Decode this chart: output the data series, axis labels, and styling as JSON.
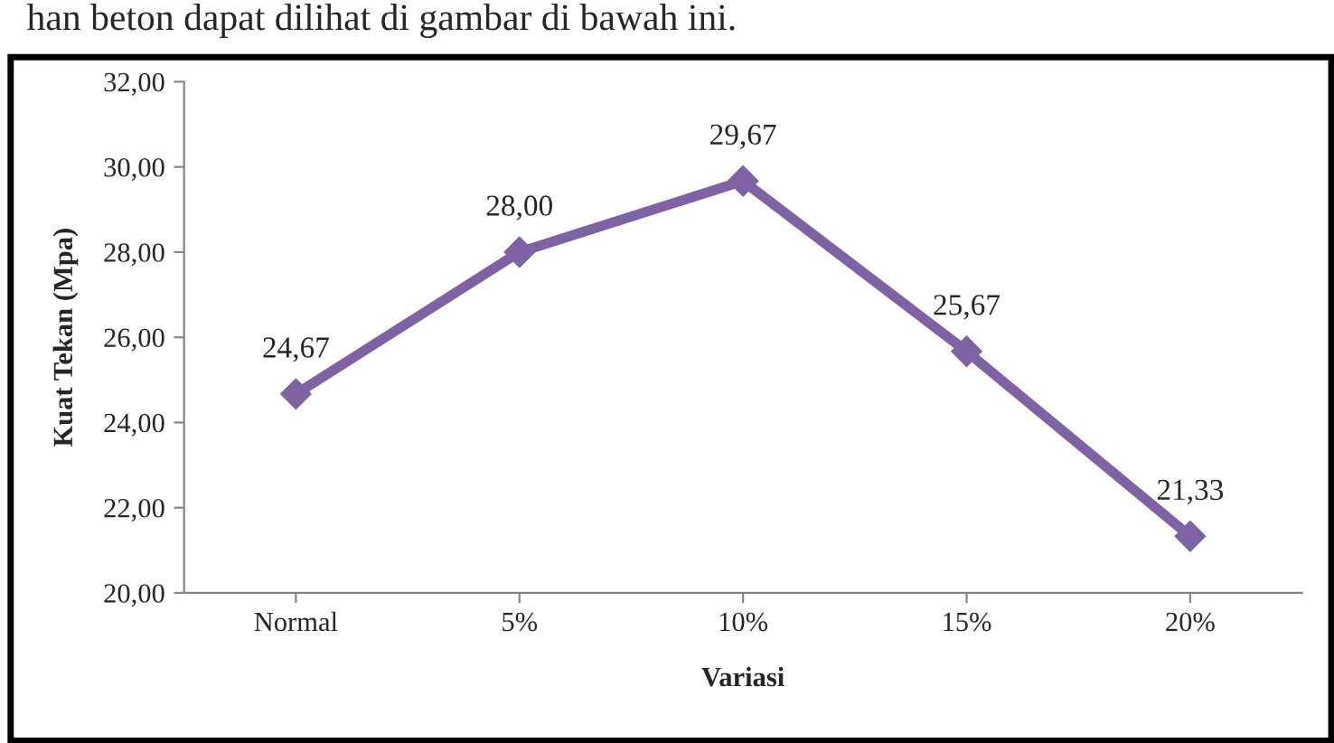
{
  "chart_data": {
    "type": "line",
    "xlabel": "Variasi",
    "ylabel": "Kuat Tekan (Mpa)",
    "annotations": [
      "han beton dapat dilihat di gambar di bawah ini."
    ],
    "categories": [
      "Normal",
      "5%",
      "10%",
      "15%",
      "20%"
    ],
    "series": [
      {
        "color": "#7f62a4",
        "values": [
          24.67,
          28.0,
          29.67,
          25.67,
          21.33
        ],
        "value_labels": [
          "24,67",
          "28,00",
          "29,67",
          "25,67",
          "21,33"
        ]
      }
    ],
    "ylim": [
      20,
      32
    ],
    "yticks": [
      {
        "value": 20,
        "label": "20,00"
      },
      {
        "value": 22,
        "label": "22,00"
      },
      {
        "value": 24,
        "label": "24,00"
      },
      {
        "value": 26,
        "label": "26,00"
      },
      {
        "value": 28,
        "label": "28,00"
      },
      {
        "value": 30,
        "label": "30,00"
      },
      {
        "value": 32,
        "label": "32,00"
      }
    ],
    "marker": "diamond",
    "line_style": "solid",
    "grid": false,
    "legend": false
  }
}
